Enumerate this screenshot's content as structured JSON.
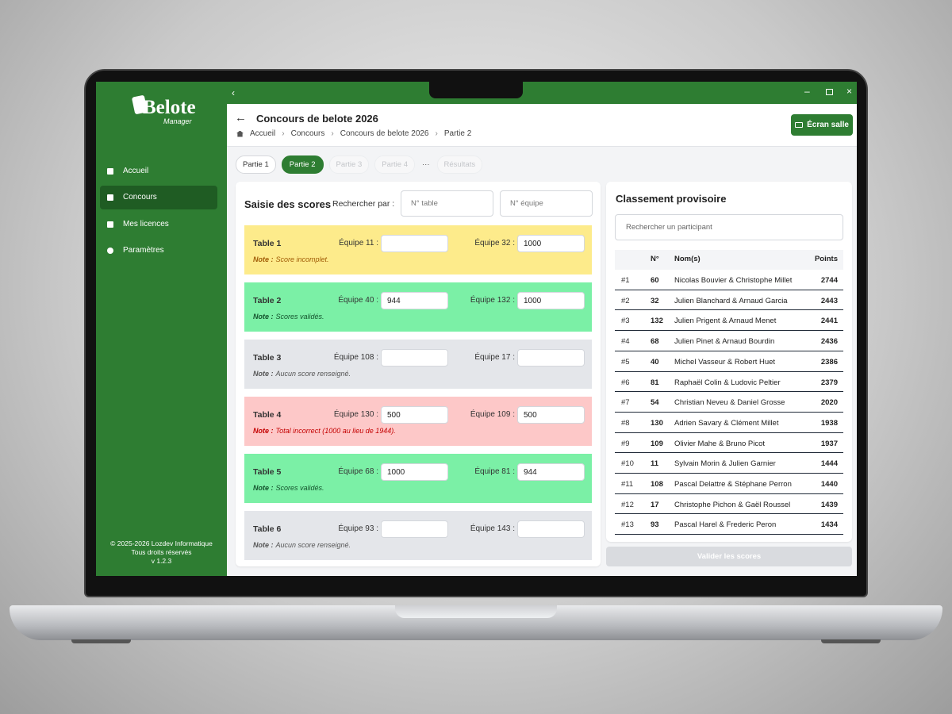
{
  "sidebar": {
    "logo": "Belote",
    "logo_sub": "Manager",
    "nav": [
      "Accueil",
      "Concours",
      "Mes licences",
      "Paramètres"
    ],
    "footer": [
      "© 2025-2026 Lozdev Informatique",
      "Tous droits réservés",
      "v 1.2.3"
    ]
  },
  "header": {
    "title": "Concours de belote 2026",
    "breadcrumb": [
      "Accueil",
      "Concours",
      "Concours de belote 2026",
      "Partie 2"
    ],
    "screen_button": "Écran salle"
  },
  "tabs": [
    "Partie 1",
    "Partie 2",
    "Partie 3",
    "Partie 4",
    "···",
    "Résultats"
  ],
  "scores": {
    "title": "Saisie des scores",
    "search_label": "Rechercher par :",
    "search_placeholders": [
      "N° table",
      "N° équipe"
    ],
    "cards": [
      {
        "label": "Table 1",
        "team_a": "Équipe 11 :",
        "team_b": "Équipe 32 :",
        "score_b": 1000,
        "note_label": "Note :",
        "note": "Score incomplet.",
        "color": "#fdeb8b",
        "note_color": "#a15c07"
      },
      {
        "label": "Table 2",
        "team_a": "Équipe 40 :",
        "score_a": 944,
        "team_b": "Équipe 132 :",
        "score_b": 1000,
        "note_label": "Note :",
        "note": "Scores validés.",
        "color": "#7bf0a6",
        "note_color": "#14532d"
      },
      {
        "label": "Table 3",
        "team_a": "Équipe 108 :",
        "team_b": "Équipe 17 :",
        "note_label": "Note :",
        "note": "Aucun score renseigné.",
        "color": "#e4e6ea",
        "note_color": "#555555"
      },
      {
        "label": "Table 4",
        "team_a": "Équipe 130 :",
        "score_a": 500,
        "team_b": "Équipe 109 :",
        "score_b": 500,
        "note_label": "Note :",
        "note": "Total incorrect (1000 au lieu de 1944).",
        "color": "#fdc8c8",
        "note_color": "#c40000"
      },
      {
        "label": "Table 5",
        "team_a": "Équipe 68 :",
        "score_a": 1000,
        "team_b": "Équipe 81 :",
        "score_b": 944,
        "note_label": "Note :",
        "note": "Scores validés.",
        "color": "#7bf0a6",
        "note_color": "#14532d"
      },
      {
        "label": "Table 6",
        "team_a": "Équipe 93 :",
        "team_b": "Équipe 143 :",
        "note_label": "Note :",
        "note": "Aucun score renseigné.",
        "color": "#e4e6ea",
        "note_color": "#555555"
      }
    ]
  },
  "ranking": {
    "title": "Classement provisoire",
    "search_placeholder": "Rechercher un participant",
    "columns": [
      "N°",
      "Nom(s)",
      "Points"
    ],
    "rows": [
      {
        "rank": "#1",
        "no": 60,
        "names": "Nicolas Bouvier & Christophe Millet",
        "points": 2744
      },
      {
        "rank": "#2",
        "no": 32,
        "names": "Julien Blanchard & Arnaud Garcia",
        "points": 2443
      },
      {
        "rank": "#3",
        "no": 132,
        "names": "Julien Prigent & Arnaud Menet",
        "points": 2441
      },
      {
        "rank": "#4",
        "no": 68,
        "names": "Julien Pinet & Arnaud Bourdin",
        "points": 2436
      },
      {
        "rank": "#5",
        "no": 40,
        "names": "Michel Vasseur & Robert Huet",
        "points": 2386
      },
      {
        "rank": "#6",
        "no": 81,
        "names": "Raphaël Colin & Ludovic Peltier",
        "points": 2379
      },
      {
        "rank": "#7",
        "no": 54,
        "names": "Christian Neveu & Daniel Grosse",
        "points": 2020
      },
      {
        "rank": "#8",
        "no": 130,
        "names": "Adrien Savary & Clément Millet",
        "points": 1938
      },
      {
        "rank": "#9",
        "no": 109,
        "names": "Olivier Mahe & Bruno Picot",
        "points": 1937
      },
      {
        "rank": "#10",
        "no": 11,
        "names": "Sylvain Morin & Julien Garnier",
        "points": 1444
      },
      {
        "rank": "#11",
        "no": 108,
        "names": "Pascal Delattre & Stéphane Perron",
        "points": 1440
      },
      {
        "rank": "#12",
        "no": 17,
        "names": "Christophe Pichon & Gaël Roussel",
        "points": 1439
      },
      {
        "rank": "#13",
        "no": 93,
        "names": "Pascal Harel & Frederic Peron",
        "points": 1434
      }
    ],
    "validate_button": "Valider les scores"
  }
}
